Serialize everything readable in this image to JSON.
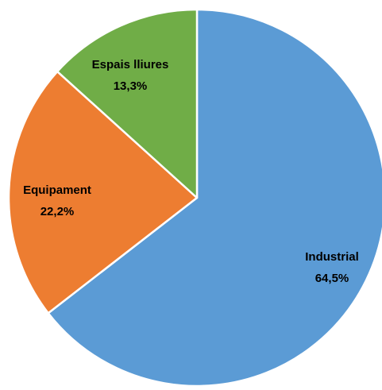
{
  "chart_data": {
    "type": "pie",
    "title": "",
    "slices": [
      {
        "label": "Industrial",
        "value": 64.5,
        "value_label": "64,5%",
        "color": "#5b9bd5"
      },
      {
        "label": "Equipament",
        "value": 22.2,
        "value_label": "22,2%",
        "color": "#ed7d31"
      },
      {
        "label": "Espais lliures",
        "value": 13.3,
        "value_label": "13,3%",
        "color": "#70ad47"
      }
    ],
    "start_angle_deg": 0,
    "direction": "clockwise",
    "slice_border_color": "#ffffff",
    "legend": "none"
  }
}
